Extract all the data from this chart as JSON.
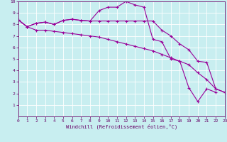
{
  "xlabel": "Windchill (Refroidissement éolien,°C)",
  "background_color": "#c8eef0",
  "line_color": "#990099",
  "grid_color": "#ffffff",
  "xlim": [
    0,
    23
  ],
  "ylim": [
    0,
    10
  ],
  "xticks": [
    0,
    1,
    2,
    3,
    4,
    5,
    6,
    7,
    8,
    9,
    10,
    11,
    12,
    13,
    14,
    15,
    16,
    17,
    18,
    19,
    20,
    21,
    22,
    23
  ],
  "yticks": [
    1,
    2,
    3,
    4,
    5,
    6,
    7,
    8,
    9,
    10
  ],
  "series1": {
    "x": [
      0,
      1,
      2,
      3,
      4,
      5,
      6,
      7,
      8,
      9,
      10,
      11,
      12,
      13,
      14,
      15,
      16,
      17,
      18,
      19,
      20,
      21,
      22,
      23
    ],
    "y": [
      8.4,
      7.8,
      8.1,
      8.2,
      8.0,
      8.35,
      8.45,
      8.35,
      8.3,
      9.2,
      9.5,
      9.5,
      10.0,
      9.7,
      9.5,
      6.7,
      6.5,
      5.0,
      4.8,
      2.5,
      1.3,
      2.4,
      2.1,
      null
    ]
  },
  "series2": {
    "x": [
      0,
      1,
      2,
      3,
      4,
      5,
      6,
      7,
      8,
      9,
      10,
      11,
      12,
      13,
      14,
      15,
      16,
      17,
      18,
      19,
      20,
      21,
      22,
      23
    ],
    "y": [
      8.4,
      7.8,
      8.1,
      8.2,
      8.0,
      8.35,
      8.45,
      8.35,
      8.3,
      8.3,
      8.3,
      8.3,
      8.3,
      8.3,
      8.3,
      8.3,
      7.5,
      7.0,
      6.3,
      5.8,
      4.8,
      4.7,
      2.4,
      2.1
    ]
  },
  "series3": {
    "x": [
      0,
      1,
      2,
      3,
      4,
      5,
      6,
      7,
      8,
      9,
      10,
      11,
      12,
      13,
      14,
      15,
      16,
      17,
      18,
      19,
      20,
      21,
      22,
      23
    ],
    "y": [
      8.4,
      7.8,
      7.5,
      7.5,
      7.4,
      7.3,
      7.2,
      7.1,
      7.0,
      6.9,
      6.7,
      6.5,
      6.3,
      6.1,
      5.9,
      5.7,
      5.4,
      5.1,
      4.8,
      4.5,
      3.8,
      3.2,
      2.4,
      2.1
    ]
  }
}
